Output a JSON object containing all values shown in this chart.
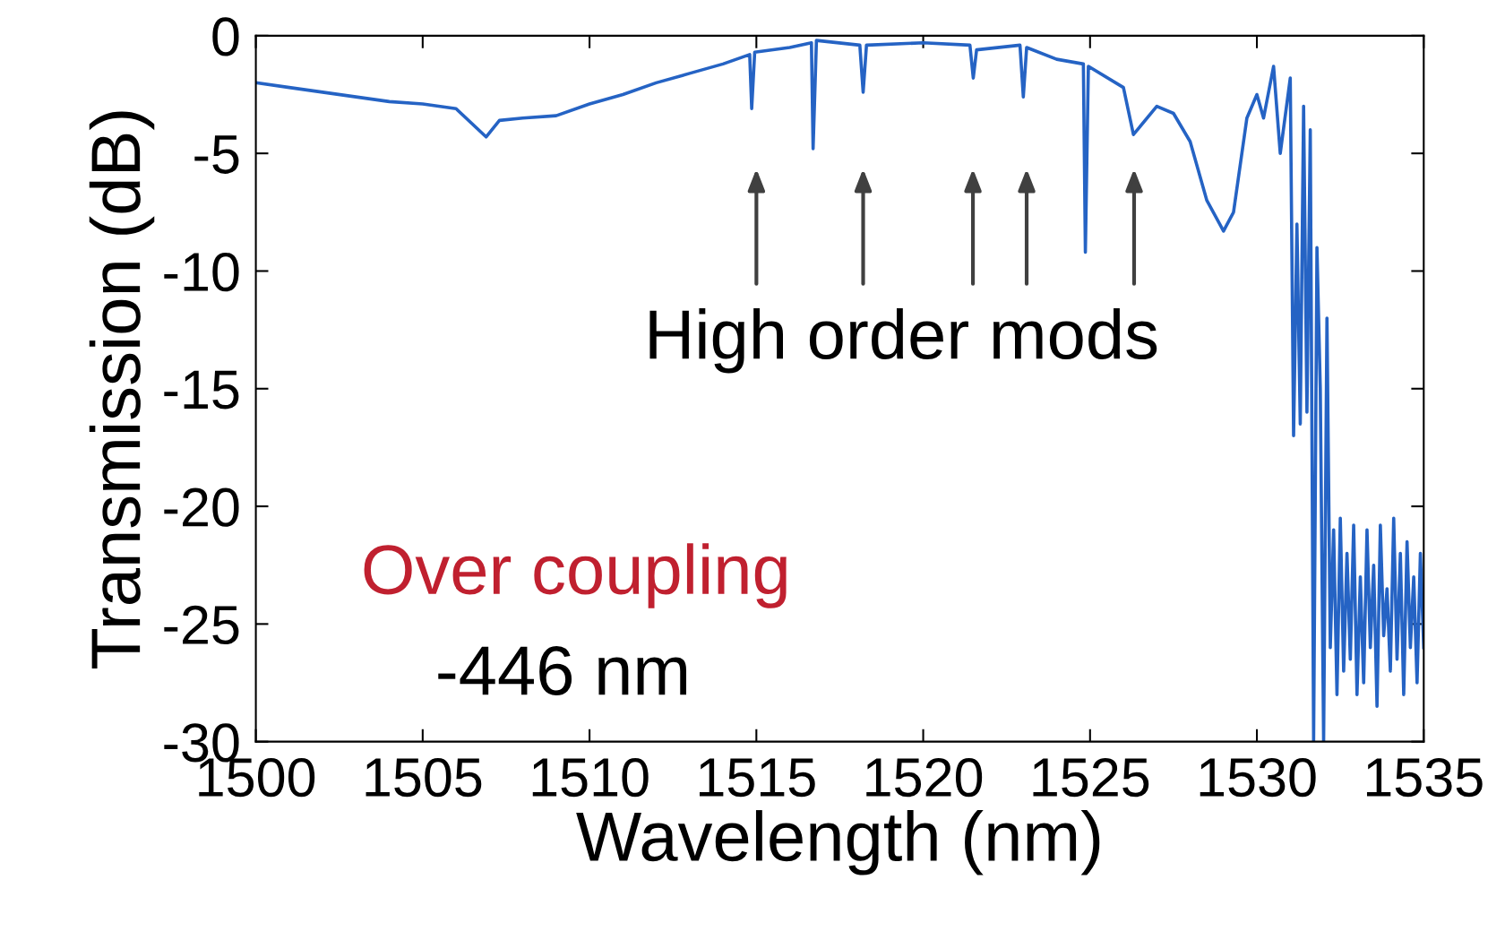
{
  "chart_data": {
    "type": "line",
    "xlabel": "Wavelength (nm)",
    "ylabel": "Transmission (dB)",
    "xlim": [
      1500,
      1535
    ],
    "ylim": [
      -30,
      0
    ],
    "xticks": [
      1500,
      1505,
      1510,
      1515,
      1520,
      1525,
      1530,
      1535
    ],
    "yticks": [
      -30,
      -25,
      -20,
      -15,
      -10,
      -5,
      0
    ],
    "grid": false,
    "legend": false,
    "annotations": [
      "High order mods",
      "Over coupling",
      "-446 nm"
    ],
    "series": [
      {
        "color": "#2563c4",
        "x": [
          1500,
          1501,
          1502,
          1503,
          1504,
          1505,
          1506,
          1506.9,
          1507.3,
          1508,
          1509,
          1510,
          1511,
          1512,
          1513,
          1514,
          1514.8,
          1514.86,
          1514.95,
          1516,
          1516.65,
          1516.7,
          1516.8,
          1518.1,
          1518.2,
          1518.3,
          1520,
          1521.4,
          1521.5,
          1521.6,
          1522.9,
          1523.0,
          1523.1,
          1524,
          1524.8,
          1524.86,
          1524.95,
          1526,
          1526.3,
          1527,
          1527.5,
          1528,
          1528.5,
          1529,
          1529.3,
          1529.7,
          1530,
          1530.2,
          1530.5,
          1530.7,
          1531,
          1531.1,
          1531.2,
          1531.3,
          1531.4,
          1531.5,
          1531.6,
          1531.7,
          1531.8,
          1531.9,
          1532,
          1532.1,
          1532.2,
          1532.3,
          1532.4,
          1532.5,
          1532.6,
          1532.7,
          1532.8,
          1532.9,
          1533,
          1533.1,
          1533.2,
          1533.3,
          1533.4,
          1533.5,
          1533.6,
          1533.7,
          1533.8,
          1533.9,
          1534,
          1534.1,
          1534.2,
          1534.3,
          1534.4,
          1534.5,
          1534.6,
          1534.7,
          1534.8,
          1534.9,
          1535
        ],
        "values": [
          -2.0,
          -2.2,
          -2.4,
          -2.6,
          -2.8,
          -2.9,
          -3.1,
          -4.3,
          -3.6,
          -3.5,
          -3.4,
          -2.9,
          -2.5,
          -2.0,
          -1.6,
          -1.2,
          -0.8,
          -3.1,
          -0.7,
          -0.5,
          -0.3,
          -4.8,
          -0.2,
          -0.4,
          -2.4,
          -0.4,
          -0.3,
          -0.4,
          -1.8,
          -0.6,
          -0.4,
          -2.6,
          -0.5,
          -1.0,
          -1.2,
          -9.2,
          -1.3,
          -2.2,
          -4.2,
          -3.0,
          -3.3,
          -4.5,
          -7.0,
          -8.3,
          -7.5,
          -3.5,
          -2.5,
          -3.5,
          -1.3,
          -5.0,
          -1.8,
          -17.0,
          -8.0,
          -16.5,
          -3.0,
          -16.0,
          -4.0,
          -30.0,
          -9.0,
          -15.0,
          -30.0,
          -12.0,
          -26.0,
          -21.0,
          -28.0,
          -20.5,
          -27.0,
          -22.0,
          -26.5,
          -20.8,
          -28.0,
          -23.0,
          -27.5,
          -21.0,
          -26.0,
          -22.5,
          -28.5,
          -20.8,
          -25.5,
          -23.5,
          -27.0,
          -20.5,
          -26.5,
          -22.0,
          -28.0,
          -21.5,
          -26.0,
          -23.0,
          -27.5,
          -22.0,
          -26.0
        ]
      }
    ]
  }
}
